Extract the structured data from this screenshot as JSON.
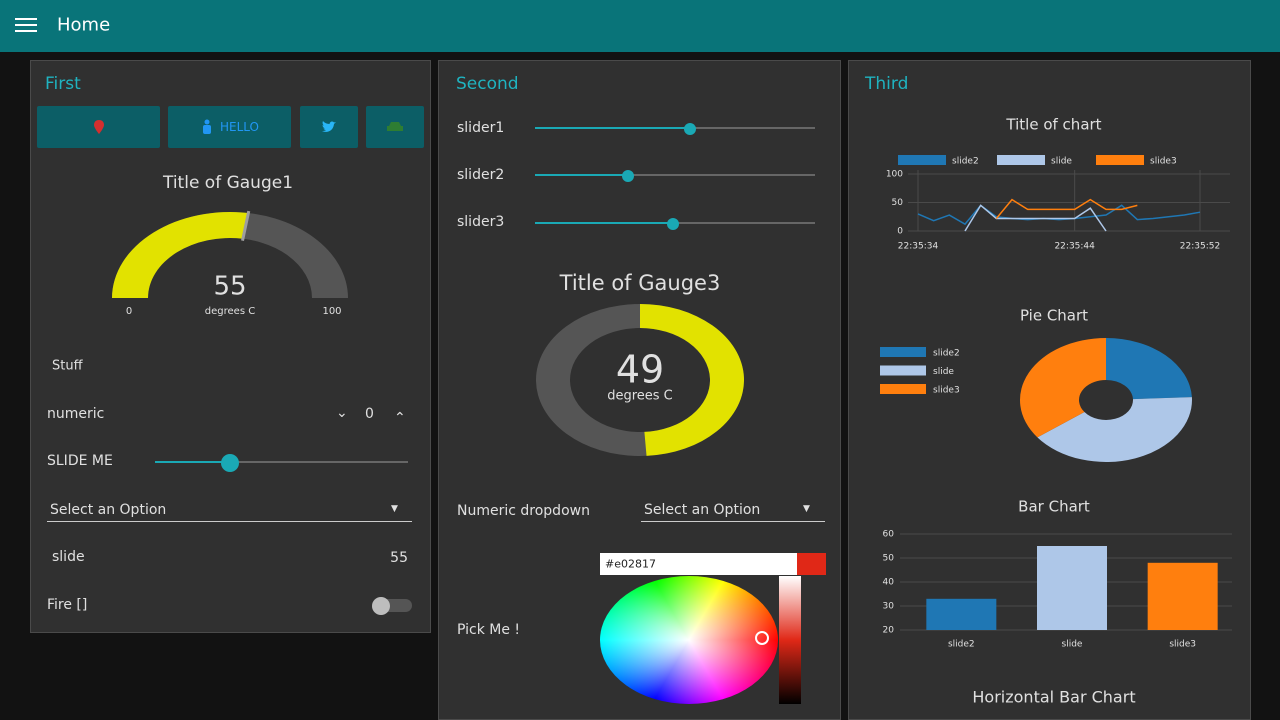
{
  "header": {
    "title": "Home"
  },
  "first": {
    "title": "First",
    "button": "HELLO",
    "gauge": {
      "title": "Title of Gauge1",
      "value": 55,
      "units": "degrees C",
      "min": 0,
      "max": 100
    },
    "text": "Stuff",
    "numeric": {
      "label": "numeric",
      "value": 0
    },
    "slider": "SLIDE ME",
    "dropdown": "Select an Option",
    "slide": {
      "label": "slide",
      "value": 55
    },
    "switch": "Fire []"
  },
  "second": {
    "title": "Second",
    "sliders": [
      "slider1",
      "slider2",
      "slider3"
    ],
    "gauge": {
      "title": "Title of Gauge3",
      "value": 49,
      "units": "degrees C",
      "range": [
        0,
        100
      ]
    },
    "dropdown": {
      "label": "Numeric dropdown",
      "placeholder": "Select an Option"
    },
    "colour": {
      "label": "Pick Me !",
      "value": "#e02817"
    }
  },
  "third": {
    "title": "Third"
  },
  "chart_data": [
    {
      "type": "line",
      "title": "Title of chart",
      "xlim": [
        "22:35:34",
        "22:35:52"
      ],
      "xticks": [
        "22:35:34",
        "22:35:44",
        "22:35:52"
      ],
      "ylim": [
        0,
        100
      ],
      "yticks": [
        0,
        50,
        100
      ],
      "grid": true,
      "series": [
        {
          "name": "slide2",
          "color": "#1f77b4",
          "x": [
            "22:35:34",
            "22:35:35",
            "22:35:36",
            "22:35:37",
            "22:35:38",
            "22:35:39",
            "22:35:40",
            "22:35:41",
            "22:35:42",
            "22:35:43",
            "22:35:44",
            "22:35:45",
            "22:35:46",
            "22:35:47",
            "22:35:48",
            "22:35:49",
            "22:35:50",
            "22:35:51",
            "22:35:52"
          ],
          "values": [
            30,
            18,
            28,
            12,
            45,
            25,
            22,
            20,
            22,
            20,
            22,
            25,
            28,
            45,
            20,
            22,
            25,
            28,
            33
          ]
        },
        {
          "name": "slide",
          "color": "#aec7e8",
          "x": [
            "22:35:37",
            "22:35:38",
            "22:35:39",
            "22:35:40",
            "22:35:41",
            "22:35:42",
            "22:35:43",
            "22:35:44",
            "22:35:45",
            "22:35:46"
          ],
          "values": [
            0,
            45,
            22,
            22,
            22,
            22,
            22,
            22,
            40,
            0
          ]
        },
        {
          "name": "slide3",
          "color": "#ff7f0e",
          "x": [
            "22:35:39",
            "22:35:40",
            "22:35:41",
            "22:35:42",
            "22:35:43",
            "22:35:44",
            "22:35:45",
            "22:35:46",
            "22:35:47",
            "22:35:48"
          ],
          "values": [
            22,
            55,
            38,
            38,
            38,
            38,
            55,
            38,
            38,
            45
          ]
        }
      ]
    },
    {
      "type": "pie",
      "title": "Pie Chart",
      "categories": [
        "slide2",
        "slide",
        "slide3"
      ],
      "values": [
        33,
        55,
        48
      ],
      "colors": [
        "#1f77b4",
        "#aec7e8",
        "#ff7f0e"
      ]
    },
    {
      "type": "bar",
      "title": "Bar Chart",
      "categories": [
        "slide2",
        "slide",
        "slide3"
      ],
      "values": [
        33,
        55,
        48
      ],
      "colors": [
        "#1f77b4",
        "#aec7e8",
        "#ff7f0e"
      ],
      "ylim": [
        20,
        60
      ],
      "yticks": [
        20,
        30,
        40,
        50,
        60
      ],
      "grid": true
    },
    {
      "type": "hbar",
      "title": "Horizontal Bar Chart"
    }
  ]
}
